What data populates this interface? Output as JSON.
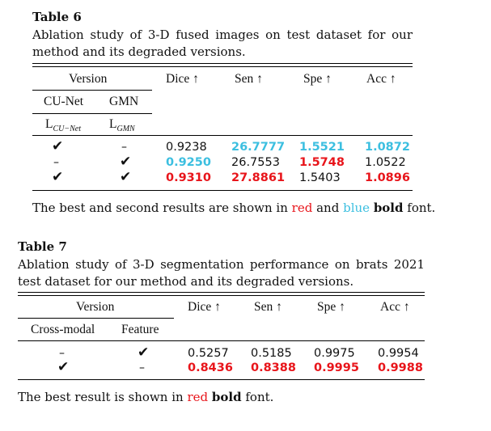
{
  "table6": {
    "label": "Table 6",
    "caption": "Ablation study of 3-D fused images on test dataset for our method and its degraded versions.",
    "headers": {
      "version": "Version",
      "dice": "Dice ↑",
      "sen": "Sen ↑",
      "spe": "Spe ↑",
      "acc": "Acc ↑",
      "col1": "CU-Net",
      "col2": "GMN",
      "loss1_main": "L",
      "loss1_sub": "CU−Net",
      "loss2_main": "L",
      "loss2_sub": "GMN"
    },
    "rows": [
      {
        "c1": "✔",
        "c2": "–",
        "dice": "0.9238",
        "sen": "26.7777",
        "spe": "1.5521",
        "acc": "1.0872"
      },
      {
        "c1": "–",
        "c2": "✔",
        "dice": "0.9250",
        "sen": "26.7553",
        "spe": "1.5748",
        "acc": "1.0522"
      },
      {
        "c1": "✔",
        "c2": "✔",
        "dice": "0.9310",
        "sen": "27.8861",
        "spe": "1.5403",
        "acc": "1.0896"
      }
    ],
    "note": {
      "part1": "The best and second results are shown in",
      "red": "red",
      "and": "and",
      "blue": "blue",
      "bold": "bold",
      "font": "font."
    },
    "colors": {
      "best": "#e8151b",
      "second": "#3cbfe0"
    }
  },
  "table7": {
    "label": "Table 7",
    "caption": "Ablation study of 3-D segmentation performance on brats 2021 test dataset for our method and its degraded versions.",
    "headers": {
      "version": "Version",
      "dice": "Dice ↑",
      "sen": "Sen ↑",
      "spe": "Spe ↑",
      "acc": "Acc ↑",
      "col1": "Cross-modal",
      "col2": "Feature"
    },
    "rows": [
      {
        "c1": "–",
        "c2": "✔",
        "dice": "0.5257",
        "sen": "0.5185",
        "spe": "0.9975",
        "acc": "0.9954"
      },
      {
        "c1": "✔",
        "c2": "–",
        "dice": "0.8436",
        "sen": "0.8388",
        "spe": "0.9995",
        "acc": "0.9988"
      }
    ],
    "note": {
      "part1": "The best result is shown in",
      "red": "red",
      "bold": "bold",
      "font": "font."
    }
  }
}
